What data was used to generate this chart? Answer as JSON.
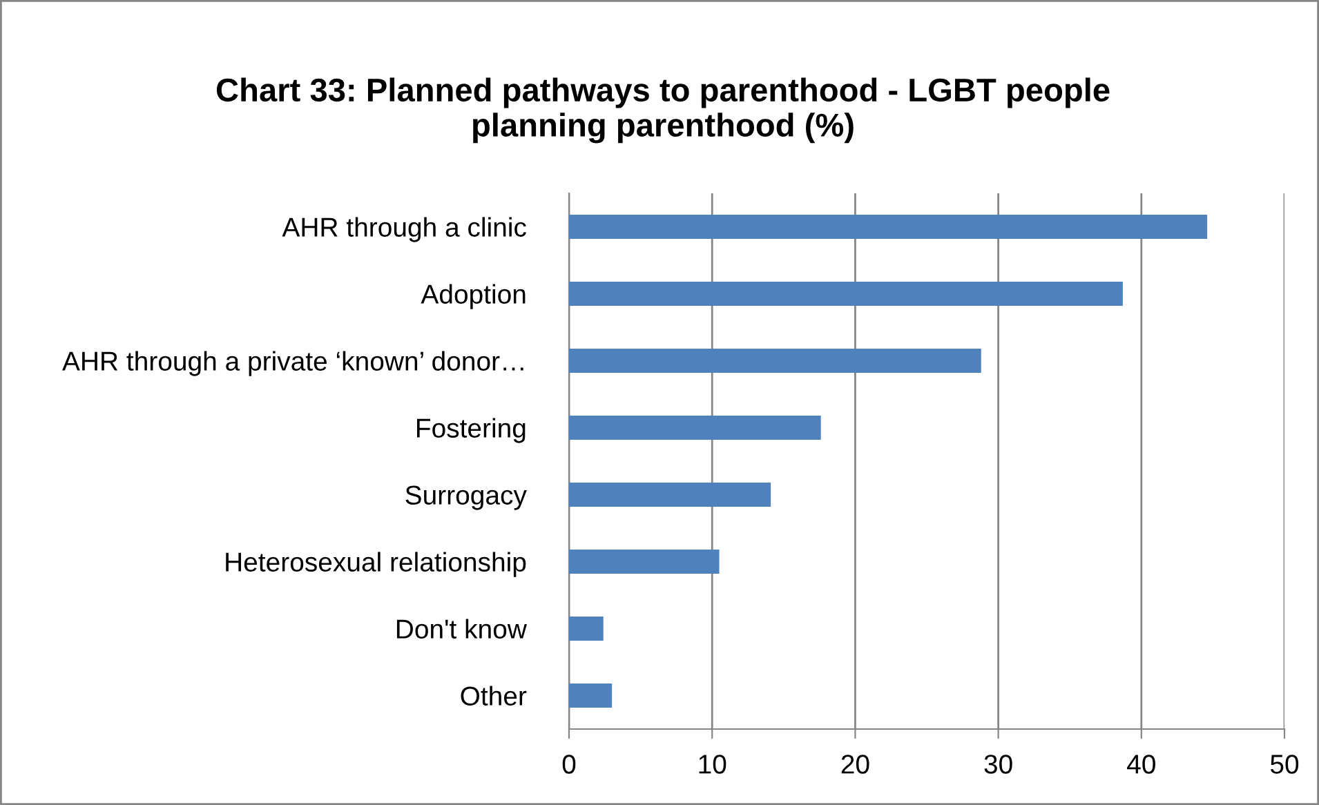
{
  "chart_data": {
    "type": "bar",
    "orientation": "horizontal",
    "title": "Chart 33: Planned pathways to parenthood - LGBT people\nplanning parenthood (%)",
    "categories": [
      "AHR through a clinic",
      "Adoption",
      "AHR through a private ‘known’ donor…",
      "Fostering",
      "Surrogacy",
      "Heterosexual relationship",
      "Don't know",
      "Other"
    ],
    "values": [
      44.6,
      38.7,
      28.8,
      17.6,
      14.1,
      10.5,
      2.4,
      3.0
    ],
    "color": "#4f81bd",
    "xlim": [
      0,
      50
    ],
    "xticks": [
      0,
      10,
      20,
      30,
      40,
      50
    ],
    "grid": "x",
    "legend": false
  }
}
